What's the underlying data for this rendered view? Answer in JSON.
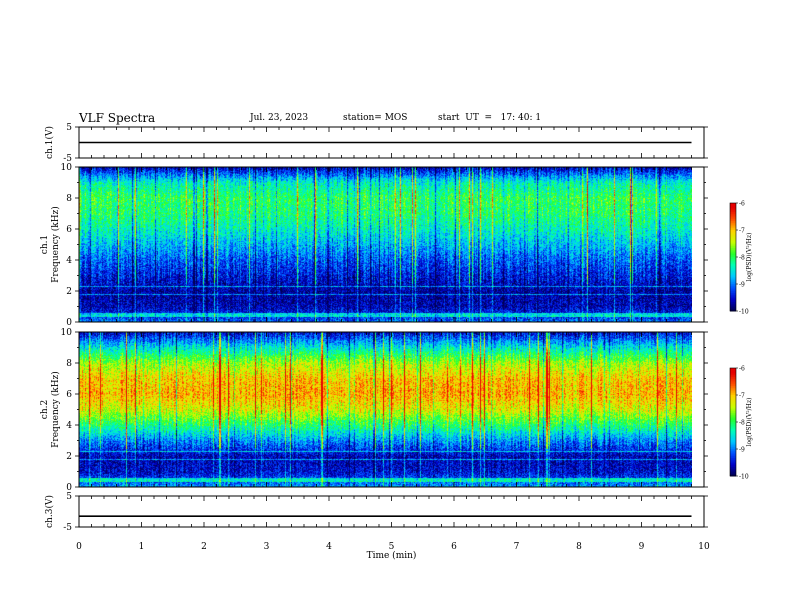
{
  "header": {
    "title": "VLF Spectra",
    "date": "Jul. 23, 2023",
    "station": "station= MOS",
    "start": "start  UT  =   17: 40: 1"
  },
  "colors": {
    "colormap": [
      "#000050",
      "#0000c8",
      "#0050ff",
      "#00c8ff",
      "#00ffb4",
      "#28ff28",
      "#c8ff00",
      "#ffd200",
      "#ff5000",
      "#e60000",
      "#ffffff"
    ]
  },
  "chart_data": [
    {
      "id": "ch1-waveform",
      "type": "line",
      "ylabel": "ch.1(V)",
      "ylim": [
        -5,
        5
      ],
      "yticks": [
        "5",
        "-5"
      ],
      "xlim": [
        0,
        10
      ],
      "x": [
        0,
        9.8
      ],
      "y": [
        0,
        0
      ]
    },
    {
      "id": "ch1-spectrogram",
      "type": "heatmap",
      "ylabel": "ch.1\nFrequency (kHz)",
      "ylim": [
        0,
        10
      ],
      "yticks": [
        "0",
        "2",
        "4",
        "6",
        "8",
        "10"
      ],
      "xlim": [
        0,
        10
      ],
      "data_xmax": 9.8,
      "colorbar": {
        "label": "log(PSD)(V²/Hz)",
        "range": [
          -10,
          -6
        ],
        "ticks": [
          "-6",
          "-7",
          "-8",
          "-9",
          "-10"
        ]
      },
      "band_profile_khz": [
        0,
        1,
        2,
        3,
        4,
        5,
        6,
        7,
        8,
        9,
        10
      ],
      "band_profile_logpsd": [
        -9.0,
        -9.6,
        -9.7,
        -9.4,
        -9.1,
        -8.7,
        -8.3,
        -8.0,
        -7.9,
        -8.3,
        -9.6
      ]
    },
    {
      "id": "ch2-spectrogram",
      "type": "heatmap",
      "ylabel": "ch.2\nFrequency (kHz)",
      "ylim": [
        0,
        10
      ],
      "yticks": [
        "0",
        "2",
        "4",
        "6",
        "8",
        "10"
      ],
      "xlim": [
        0,
        10
      ],
      "data_xmax": 9.8,
      "colorbar": {
        "label": "log(PSD)(V²/Hz)",
        "range": [
          -10,
          -6
        ],
        "ticks": [
          "-6",
          "-7",
          "-8",
          "-9",
          "-10"
        ]
      },
      "band_profile_khz": [
        0,
        1,
        2,
        3,
        4,
        5,
        6,
        7,
        8,
        9,
        10
      ],
      "band_profile_logpsd": [
        -8.8,
        -9.5,
        -9.6,
        -8.9,
        -8.0,
        -7.2,
        -6.8,
        -6.9,
        -7.4,
        -8.4,
        -9.5
      ]
    },
    {
      "id": "ch3-waveform",
      "type": "line",
      "ylabel": "ch.3(V)",
      "ylim": [
        -5,
        5
      ],
      "yticks": [
        "5",
        "-5"
      ],
      "xlim": [
        0,
        10
      ],
      "x": [
        0,
        9.8
      ],
      "y": [
        -1.5,
        -1.5
      ]
    }
  ],
  "x_axis": {
    "label": "Time (min)",
    "ticks": [
      "0",
      "1",
      "2",
      "3",
      "4",
      "5",
      "6",
      "7",
      "8",
      "9",
      "10"
    ]
  }
}
